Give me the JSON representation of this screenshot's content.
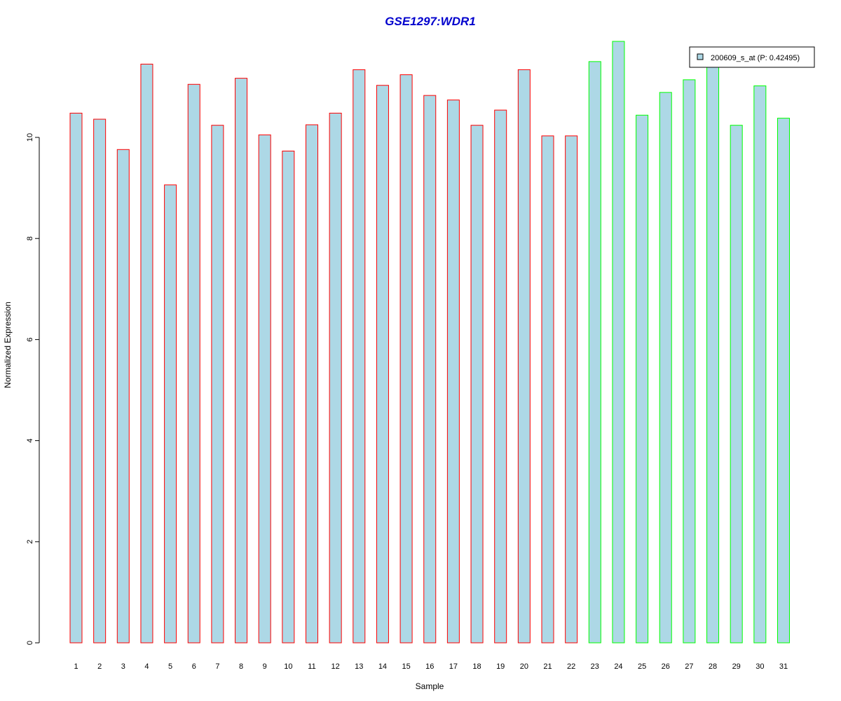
{
  "chart_data": {
    "type": "bar",
    "title": "GSE1297:WDR1",
    "xlabel": "Sample",
    "ylabel": "Normalized Expression",
    "ylim": [
      0,
      11.9
    ],
    "yticks": [
      0,
      2,
      4,
      6,
      8,
      10
    ],
    "categories": [
      "1",
      "2",
      "3",
      "4",
      "5",
      "6",
      "7",
      "8",
      "9",
      "10",
      "11",
      "12",
      "13",
      "14",
      "15",
      "16",
      "17",
      "18",
      "19",
      "20",
      "21",
      "22",
      "23",
      "24",
      "25",
      "26",
      "27",
      "28",
      "29",
      "30",
      "31"
    ],
    "series": [
      {
        "name": "200609_s_at (P: 0.42495)",
        "values": [
          10.48,
          10.36,
          9.76,
          11.45,
          9.06,
          11.05,
          10.24,
          11.17,
          10.05,
          9.73,
          10.25,
          10.48,
          11.34,
          11.03,
          11.24,
          10.83,
          10.74,
          10.24,
          10.54,
          11.34,
          10.03,
          10.03,
          11.5,
          11.9,
          10.44,
          10.89,
          11.14,
          11.4,
          10.24,
          11.02,
          10.38
        ]
      }
    ],
    "groups": [
      "red",
      "red",
      "red",
      "red",
      "red",
      "red",
      "red",
      "red",
      "red",
      "red",
      "red",
      "red",
      "red",
      "red",
      "red",
      "red",
      "red",
      "red",
      "red",
      "red",
      "red",
      "red",
      "green",
      "green",
      "green",
      "green",
      "green",
      "green",
      "green",
      "green",
      "green"
    ],
    "grid": false,
    "legend_position": "top-right",
    "colors": {
      "bar_fill": "#add8e6",
      "group_red": "#ff0000",
      "group_green": "#00ff00",
      "title": "#0000cd",
      "axis": "#000000"
    }
  }
}
